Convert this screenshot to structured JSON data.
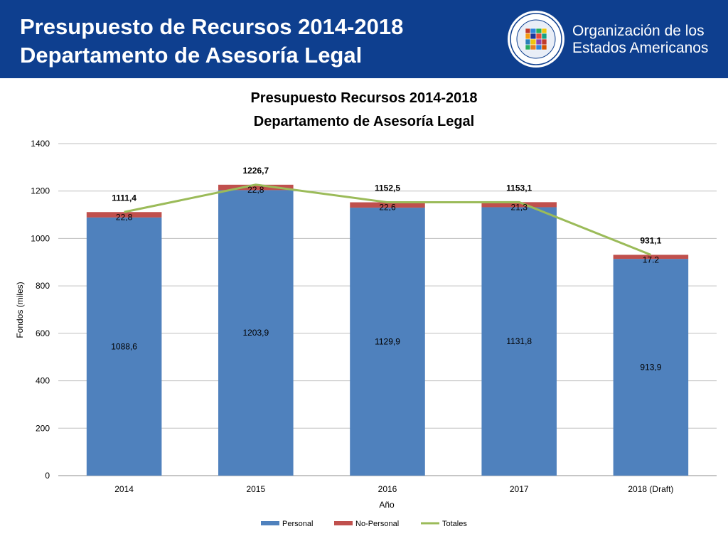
{
  "header": {
    "title_line1": "Presupuesto de Recursos 2014-2018",
    "title_line2": "Departamento de Asesoría Legal"
  },
  "organization": {
    "name_line1": "Organización de los",
    "name_line2": "Estados Americanos",
    "seal_icon": "oas-seal-icon"
  },
  "colors": {
    "header_bg": "#0e3f8f",
    "personal": "#4f81bd",
    "no_personal": "#c0504d",
    "totales": "#9bbb59"
  },
  "chart_data": {
    "type": "bar",
    "stacked": true,
    "title_line1": "Presupuesto Recursos 2014-2018",
    "title_line2": "Departamento de Asesoría Legal",
    "xlabel": "Año",
    "ylabel": "Fondos (miles)",
    "ylim": [
      0,
      1400
    ],
    "yticks": [
      "0",
      "200",
      "400",
      "600",
      "800",
      "1000",
      "1200",
      "1400"
    ],
    "grid": true,
    "legend_position": "bottom",
    "categories": [
      "2014",
      "2015",
      "2016",
      "2017",
      "2018 (Draft)"
    ],
    "series": [
      {
        "name": "Personal",
        "type": "bar",
        "values": [
          1088.6,
          1203.9,
          1129.9,
          1131.8,
          913.9
        ],
        "labels": [
          "1088,6",
          "1203,9",
          "1129,9",
          "1131,8",
          "913,9"
        ]
      },
      {
        "name": "No-Personal",
        "type": "bar",
        "values": [
          22.8,
          22.8,
          22.6,
          21.3,
          17.2
        ],
        "labels": [
          "22,8",
          "22,8",
          "22,6",
          "21,3",
          "17.2"
        ]
      },
      {
        "name": "Totales",
        "type": "line",
        "values": [
          1111.4,
          1226.7,
          1152.5,
          1153.1,
          931.1
        ],
        "labels": [
          "1111,4",
          "1226,7",
          "1152,5",
          "1153,1",
          "931,1"
        ]
      }
    ]
  }
}
